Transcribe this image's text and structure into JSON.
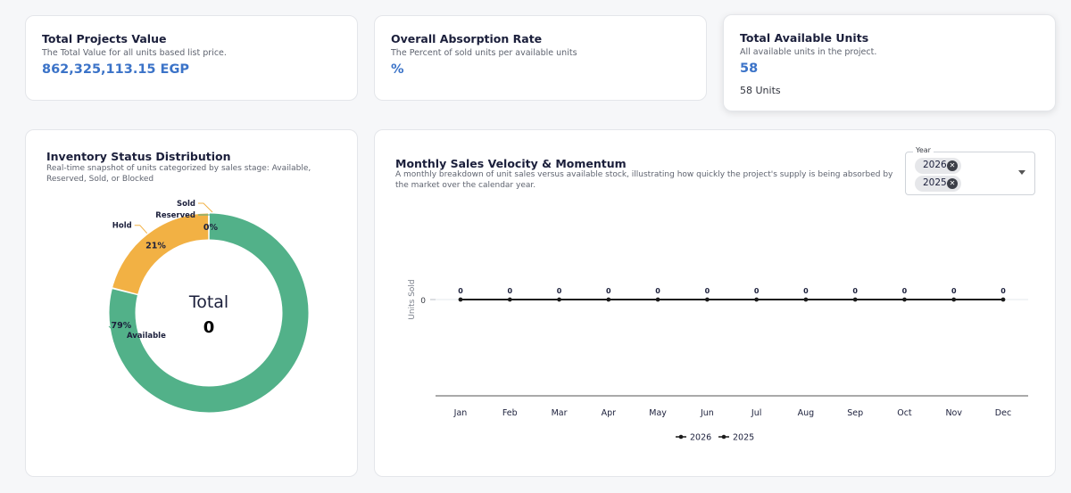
{
  "kpis": [
    {
      "title": "Total Projects Value",
      "subtitle": "The Total Value for all units based list price.",
      "value": "862,325,113.15 EGP"
    },
    {
      "title": "Overall Absorption Rate",
      "subtitle": "The Percent of sold units per available units",
      "value": "%"
    },
    {
      "title": "Total Available Units",
      "subtitle": "All available units in the project.",
      "value": "58",
      "extra": "58 Units"
    }
  ],
  "inventory": {
    "title": "Inventory Status Distribution",
    "subtitle_line1": "Real-time snapshot of units categorized by sales stage: Available,",
    "subtitle_line2": "Reserved, Sold, or Blocked",
    "center_label": "Total",
    "center_value": "0",
    "segments": [
      {
        "label": "Available",
        "percent": 79,
        "percent_label": "79%",
        "color": "#52b189"
      },
      {
        "label": "Hold",
        "percent": 21,
        "percent_label": "21%",
        "color": "#f2b144"
      },
      {
        "label": "Sold",
        "percent": 0,
        "percent_label": "0%",
        "color": "#f2b144"
      },
      {
        "label": "Reserved",
        "percent": 0,
        "percent_label": "",
        "color": "#52b189"
      }
    ]
  },
  "velocity": {
    "title": "Monthly Sales Velocity & Momentum",
    "subtitle_line1": "A monthly breakdown of unit sales versus available stock, illustrating how quickly the project's supply is being absorbed by",
    "subtitle_line2": "the market over the calendar year.",
    "year_filter": {
      "label": "Year",
      "selected": [
        "2026",
        "2025"
      ]
    }
  },
  "chart_data": {
    "type": "line",
    "categories": [
      "Jan",
      "Feb",
      "Mar",
      "Apr",
      "May",
      "Jun",
      "Jul",
      "Aug",
      "Sep",
      "Oct",
      "Nov",
      "Dec"
    ],
    "series": [
      {
        "name": "2026",
        "values": [
          0,
          0,
          0,
          0,
          0,
          0,
          0,
          0,
          0,
          0,
          0,
          0
        ]
      },
      {
        "name": "2025",
        "values": [
          0,
          0,
          0,
          0,
          0,
          0,
          0,
          0,
          0,
          0,
          0,
          0
        ]
      }
    ],
    "ylabel": "Units Sold",
    "y_ticks": [
      "0"
    ],
    "legend_position": "bottom",
    "grid": false
  }
}
